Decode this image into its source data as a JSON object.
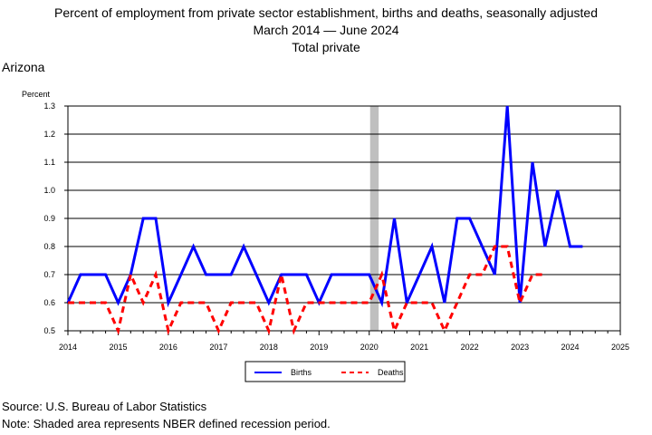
{
  "title": "Percent of employment from private sector establishment, births and deaths, seasonally adjusted",
  "subtitle": "March 2014 — June 2024",
  "series_label": "Total private",
  "region": "Arizona",
  "source": "Source: U.S. Bureau of Labor Statistics",
  "note": "Note: Shaded area represents NBER defined recession period.",
  "colors": {
    "births": "#0000ff",
    "deaths": "#ff0000",
    "recession": "#bfbfbf"
  },
  "chart_data": {
    "type": "line",
    "ylabel": "Percent",
    "xlabel": "",
    "xlim": [
      2014,
      2025
    ],
    "ylim": [
      0.5,
      1.3
    ],
    "x_ticks": [
      "2014",
      "2015",
      "2016",
      "2017",
      "2018",
      "2019",
      "2020",
      "2021",
      "2022",
      "2023",
      "2024",
      "2025"
    ],
    "y_ticks": [
      "0.5",
      "0.6",
      "0.7",
      "0.8",
      "0.9",
      "1.0",
      "1.1",
      "1.2",
      "1.3"
    ],
    "grid": true,
    "legend_position": "bottom",
    "recession_shading": [
      2020.0,
      2020.17
    ],
    "series": [
      {
        "name": "Births",
        "style": "solid",
        "color": "#0000ff",
        "x": [
          2014.0,
          2014.25,
          2014.5,
          2014.75,
          2015.0,
          2015.25,
          2015.5,
          2015.75,
          2016.0,
          2016.25,
          2016.5,
          2016.75,
          2017.0,
          2017.25,
          2017.5,
          2017.75,
          2018.0,
          2018.25,
          2018.5,
          2018.75,
          2019.0,
          2019.25,
          2019.5,
          2019.75,
          2020.0,
          2020.25,
          2020.5,
          2020.75,
          2021.0,
          2021.25,
          2021.5,
          2021.75,
          2022.0,
          2022.25,
          2022.5,
          2022.75,
          2023.0,
          2023.25,
          2023.5,
          2023.75,
          2024.0,
          2024.25
        ],
        "values": [
          0.6,
          0.7,
          0.7,
          0.7,
          0.6,
          0.7,
          0.9,
          0.9,
          0.6,
          0.7,
          0.8,
          0.7,
          0.7,
          0.7,
          0.8,
          0.7,
          0.6,
          0.7,
          0.7,
          0.7,
          0.6,
          0.7,
          0.7,
          0.7,
          0.7,
          0.6,
          0.9,
          0.6,
          0.7,
          0.8,
          0.6,
          0.9,
          0.9,
          0.8,
          0.7,
          1.3,
          0.6,
          1.1,
          0.8,
          1.0,
          0.8,
          0.8
        ]
      },
      {
        "name": "Deaths",
        "style": "dashed",
        "color": "#ff0000",
        "x": [
          2014.0,
          2014.25,
          2014.5,
          2014.75,
          2015.0,
          2015.25,
          2015.5,
          2015.75,
          2016.0,
          2016.25,
          2016.5,
          2016.75,
          2017.0,
          2017.25,
          2017.5,
          2017.75,
          2018.0,
          2018.25,
          2018.5,
          2018.75,
          2019.0,
          2019.25,
          2019.5,
          2019.75,
          2020.0,
          2020.25,
          2020.5,
          2020.75,
          2021.0,
          2021.25,
          2021.5,
          2021.75,
          2022.0,
          2022.25,
          2022.5,
          2022.75,
          2023.0,
          2023.25,
          2023.5
        ],
        "values": [
          0.6,
          0.6,
          0.6,
          0.6,
          0.5,
          0.7,
          0.6,
          0.7,
          0.5,
          0.6,
          0.6,
          0.6,
          0.5,
          0.6,
          0.6,
          0.6,
          0.5,
          0.7,
          0.5,
          0.6,
          0.6,
          0.6,
          0.6,
          0.6,
          0.6,
          0.7,
          0.5,
          0.6,
          0.6,
          0.6,
          0.5,
          0.6,
          0.7,
          0.7,
          0.8,
          0.8,
          0.6,
          0.7,
          0.7
        ]
      }
    ]
  }
}
